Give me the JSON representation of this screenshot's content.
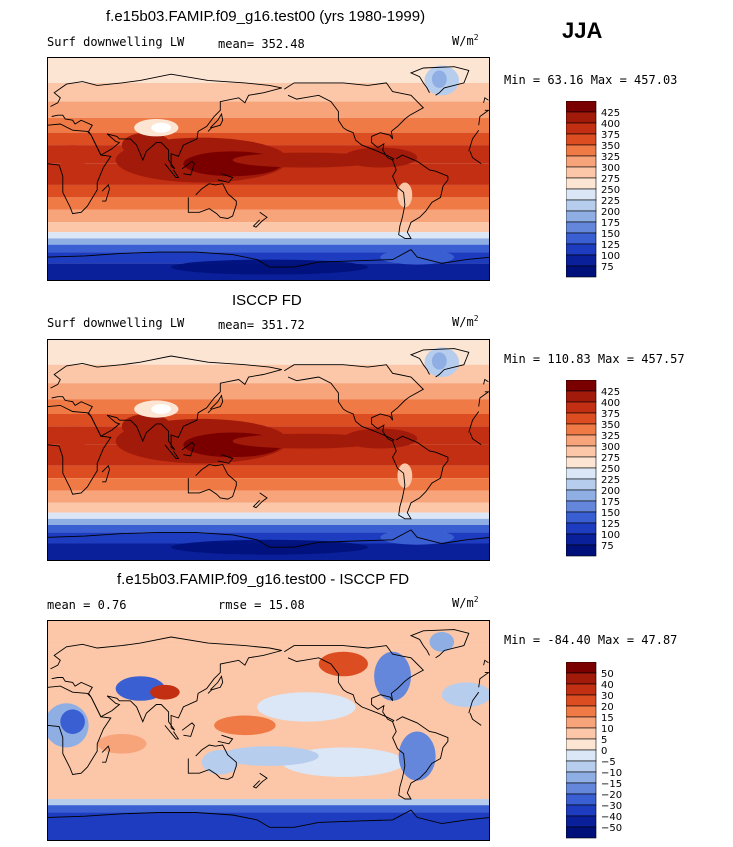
{
  "season": "JJA",
  "units": "W/m",
  "units_sup": "2",
  "panels": [
    {
      "title": "f.e15b03.FAMIP.f09_g16.test00 (yrs 1980-1999)",
      "left_label": "Surf downwelling LW",
      "stat_text": "mean=  352.48",
      "minmax": "Min =   63.16 Max =  457.03",
      "ticks": [
        "425",
        "400",
        "375",
        "350",
        "325",
        "300",
        "275",
        "250",
        "225",
        "200",
        "175",
        "150",
        "125",
        "100",
        "75"
      ],
      "colors": [
        "#7a0000",
        "#a11a0a",
        "#c22f12",
        "#dc4d22",
        "#ef7a45",
        "#f7a47b",
        "#fbc7a8",
        "#fde5d4",
        "#dbe7f6",
        "#b7cdee",
        "#8eaee4",
        "#6487db",
        "#3a5fd2",
        "#1d3cbf",
        "#0a1f9a",
        "#00107a"
      ],
      "style": "abs"
    },
    {
      "title": "ISCCP FD",
      "left_label": "Surf downwelling LW",
      "stat_text": "mean=  351.72",
      "minmax": "Min =  110.83 Max =  457.57",
      "ticks": [
        "425",
        "400",
        "375",
        "350",
        "325",
        "300",
        "275",
        "250",
        "225",
        "200",
        "175",
        "150",
        "125",
        "100",
        "75"
      ],
      "colors": [
        "#7a0000",
        "#a11a0a",
        "#c22f12",
        "#dc4d22",
        "#ef7a45",
        "#f7a47b",
        "#fbc7a8",
        "#fde5d4",
        "#dbe7f6",
        "#b7cdee",
        "#8eaee4",
        "#6487db",
        "#3a5fd2",
        "#1d3cbf",
        "#0a1f9a",
        "#00107a"
      ],
      "style": "abs"
    },
    {
      "title": "f.e15b03.FAMIP.f09_g16.test00 - ISCCP FD",
      "left_label": "mean =    0.76",
      "stat_text": "rmse =   15.08",
      "minmax": "Min = -84.40 Max =  47.87",
      "ticks": [
        "50",
        "40",
        "30",
        "20",
        "15",
        "10",
        "5",
        "0",
        "−5",
        "−10",
        "−15",
        "−20",
        "−30",
        "−40",
        "−50"
      ],
      "colors": [
        "#7a0000",
        "#a11a0a",
        "#c22f12",
        "#dc4d22",
        "#ef7a45",
        "#f7a47b",
        "#fbc7a8",
        "#fde5d4",
        "#dbe7f6",
        "#b7cdee",
        "#8eaee4",
        "#6487db",
        "#3a5fd2",
        "#1d3cbf",
        "#0a1f9a",
        "#00107a"
      ],
      "style": "diff"
    }
  ]
}
